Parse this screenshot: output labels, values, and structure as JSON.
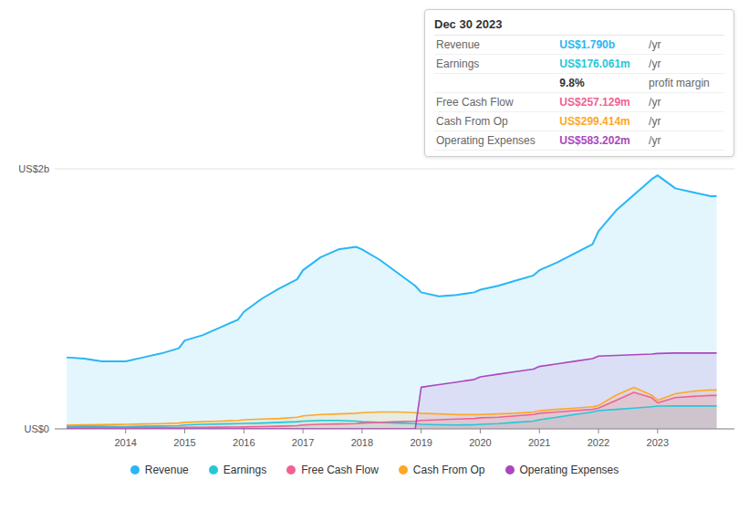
{
  "chart_data": {
    "type": "area",
    "x": [
      2013.0,
      2013.3,
      2013.6,
      2013.9,
      2014.0,
      2014.3,
      2014.6,
      2014.9,
      2015.0,
      2015.3,
      2015.6,
      2015.9,
      2016.0,
      2016.3,
      2016.6,
      2016.9,
      2017.0,
      2017.3,
      2017.6,
      2017.9,
      2018.0,
      2018.3,
      2018.6,
      2018.9,
      2019.0,
      2019.3,
      2019.6,
      2019.9,
      2020.0,
      2020.3,
      2020.6,
      2020.9,
      2021.0,
      2021.3,
      2021.6,
      2021.9,
      2022.0,
      2022.3,
      2022.6,
      2022.9,
      2023.0,
      2023.3,
      2023.6,
      2023.9,
      2024.0
    ],
    "series": [
      {
        "name": "Revenue",
        "color": "#29b6f6",
        "values": [
          0.55,
          0.54,
          0.52,
          0.52,
          0.52,
          0.55,
          0.58,
          0.62,
          0.68,
          0.72,
          0.78,
          0.84,
          0.9,
          1.0,
          1.08,
          1.15,
          1.22,
          1.32,
          1.38,
          1.4,
          1.38,
          1.3,
          1.2,
          1.1,
          1.05,
          1.02,
          1.03,
          1.05,
          1.07,
          1.1,
          1.14,
          1.18,
          1.22,
          1.28,
          1.35,
          1.42,
          1.52,
          1.68,
          1.8,
          1.92,
          1.95,
          1.85,
          1.82,
          1.79,
          1.79
        ]
      },
      {
        "name": "Earnings",
        "color": "#26c6da",
        "values": [
          0.02,
          0.022,
          0.02,
          0.018,
          0.018,
          0.02,
          0.022,
          0.025,
          0.03,
          0.035,
          0.038,
          0.04,
          0.042,
          0.045,
          0.05,
          0.055,
          0.06,
          0.065,
          0.065,
          0.06,
          0.055,
          0.05,
          0.045,
          0.04,
          0.035,
          0.032,
          0.03,
          0.032,
          0.035,
          0.04,
          0.05,
          0.06,
          0.07,
          0.09,
          0.11,
          0.13,
          0.14,
          0.15,
          0.16,
          0.17,
          0.175,
          0.176,
          0.176,
          0.176,
          0.176
        ]
      },
      {
        "name": "Free Cash Flow",
        "color": "#f06292",
        "values": [
          0.01,
          0.01,
          0.01,
          0.01,
          0.01,
          0.01,
          0.01,
          0.01,
          0.012,
          0.012,
          0.013,
          0.014,
          0.015,
          0.018,
          0.02,
          0.025,
          0.03,
          0.035,
          0.038,
          0.04,
          0.045,
          0.05,
          0.055,
          0.06,
          0.065,
          0.07,
          0.075,
          0.08,
          0.085,
          0.09,
          0.1,
          0.11,
          0.12,
          0.13,
          0.14,
          0.15,
          0.16,
          0.22,
          0.28,
          0.24,
          0.2,
          0.24,
          0.25,
          0.257,
          0.257
        ]
      },
      {
        "name": "Cash From Op",
        "color": "#ffa726",
        "values": [
          0.03,
          0.032,
          0.033,
          0.034,
          0.035,
          0.038,
          0.04,
          0.045,
          0.05,
          0.055,
          0.06,
          0.065,
          0.07,
          0.075,
          0.08,
          0.09,
          0.1,
          0.11,
          0.115,
          0.12,
          0.125,
          0.13,
          0.13,
          0.125,
          0.12,
          0.115,
          0.11,
          0.11,
          0.11,
          0.115,
          0.12,
          0.13,
          0.14,
          0.15,
          0.16,
          0.17,
          0.18,
          0.26,
          0.32,
          0.26,
          0.22,
          0.27,
          0.29,
          0.299,
          0.299
        ]
      },
      {
        "name": "Operating Expenses",
        "color": "#ab47bc",
        "values": [
          0.0,
          0.0,
          0.0,
          0.0,
          0.0,
          0.0,
          0.0,
          0.0,
          0.0,
          0.0,
          0.0,
          0.0,
          0.0,
          0.0,
          0.0,
          0.0,
          0.0,
          0.0,
          0.0,
          0.0,
          0.0,
          0.0,
          0.0,
          0.0,
          0.32,
          0.34,
          0.36,
          0.38,
          0.4,
          0.42,
          0.44,
          0.46,
          0.48,
          0.5,
          0.52,
          0.54,
          0.56,
          0.565,
          0.57,
          0.575,
          0.58,
          0.583,
          0.583,
          0.583,
          0.583
        ]
      }
    ],
    "xlim": [
      2012.8,
      2024.3
    ],
    "xticks": [
      2014,
      2015,
      2016,
      2017,
      2018,
      2019,
      2020,
      2021,
      2022,
      2023
    ],
    "ylim": [
      0.0,
      2.0
    ],
    "yticks": [
      {
        "value": 0,
        "label": "US$0"
      },
      {
        "value": 2,
        "label": "US$2b"
      }
    ],
    "grid": true,
    "legend": "bottom",
    "annotations": {
      "title": "Dec 30 2023",
      "rows": [
        {
          "label": "Revenue",
          "value": "US$1.790b",
          "unit": "/yr"
        },
        {
          "label": "Earnings",
          "value": "US$176.061m",
          "unit": "/yr"
        },
        {
          "value": "9.8%",
          "unit": "profit margin"
        },
        {
          "label": "Free Cash Flow",
          "value": "US$257.129m",
          "unit": "/yr"
        },
        {
          "label": "Cash From Op",
          "value": "US$299.414m",
          "unit": "/yr"
        },
        {
          "label": "Operating Expenses",
          "value": "US$583.202m",
          "unit": "/yr"
        }
      ]
    }
  }
}
